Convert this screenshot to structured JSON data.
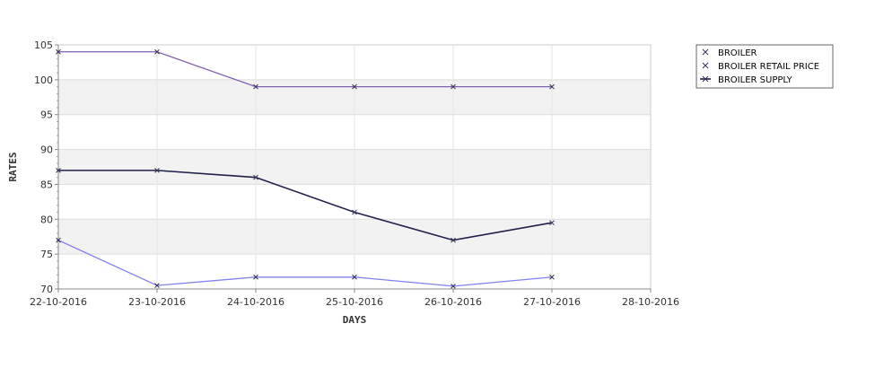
{
  "chart_data": {
    "type": "line",
    "xlabel": "DAYS",
    "ylabel": "RATES",
    "x_ticks": [
      "22-10-2016",
      "23-10-2016",
      "24-10-2016",
      "25-10-2016",
      "26-10-2016",
      "27-10-2016",
      "28-10-2016"
    ],
    "y_ticks": [
      70,
      75,
      80,
      85,
      90,
      95,
      100,
      105
    ],
    "ylim": [
      70,
      105
    ],
    "grid": true,
    "legend_position": "top-right",
    "series": [
      {
        "name": "BROILER",
        "color": "#8080f0",
        "x": [
          "22-10-2016",
          "23-10-2016",
          "24-10-2016",
          "25-10-2016",
          "26-10-2016",
          "27-10-2016"
        ],
        "values": [
          77,
          70.5,
          71.7,
          71.7,
          70.4,
          71.7
        ]
      },
      {
        "name": "BROILER RETAIL PRICE",
        "color": "#8060b0",
        "x": [
          "22-10-2016",
          "23-10-2016",
          "24-10-2016",
          "25-10-2016",
          "26-10-2016",
          "27-10-2016"
        ],
        "values": [
          104,
          104,
          99,
          99,
          99,
          99
        ]
      },
      {
        "name": "BROILER SUPPLY",
        "color": "#20204a",
        "x": [
          "22-10-2016",
          "23-10-2016",
          "24-10-2016",
          "25-10-2016",
          "26-10-2016",
          "27-10-2016"
        ],
        "values": [
          87,
          87,
          86,
          81,
          77,
          79.5
        ]
      }
    ]
  }
}
